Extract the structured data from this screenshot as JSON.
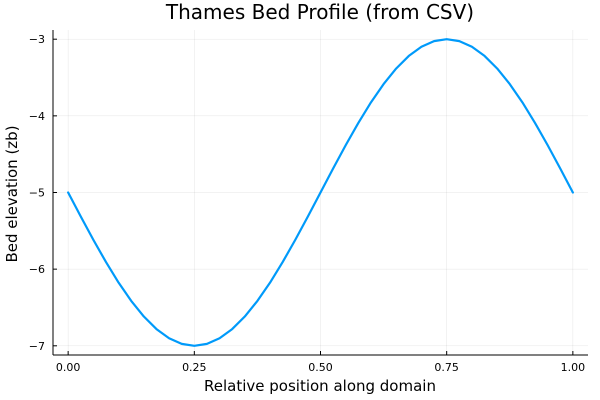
{
  "chart_data": {
    "type": "line",
    "title": "Thames Bed Profile (from CSV)",
    "xlabel": "Relative position along domain",
    "ylabel": "Bed elevation (zb)",
    "xlim": [
      -0.03,
      1.03
    ],
    "ylim": [
      -7.12,
      -2.88
    ],
    "x_ticks": [
      0,
      0.25,
      0.5,
      0.75,
      1
    ],
    "x_tick_labels": [
      "0.00",
      "0.25",
      "0.50",
      "0.75",
      "1.00"
    ],
    "y_ticks": [
      -3,
      -4,
      -5,
      -6,
      -7
    ],
    "y_tick_labels": [
      "−3",
      "−4",
      "−5",
      "−6",
      "−7"
    ],
    "grid": true,
    "legend": "none",
    "series": [
      {
        "color": "#009AFA",
        "x": [
          0.0,
          0.025,
          0.05,
          0.075,
          0.1,
          0.125,
          0.15,
          0.175,
          0.2,
          0.225,
          0.25,
          0.275,
          0.3,
          0.325,
          0.35,
          0.375,
          0.4,
          0.425,
          0.45,
          0.475,
          0.5,
          0.525,
          0.55,
          0.575,
          0.6,
          0.625,
          0.65,
          0.675,
          0.7,
          0.725,
          0.75,
          0.775,
          0.8,
          0.825,
          0.85,
          0.875,
          0.9,
          0.925,
          0.95,
          0.975,
          1.0
        ],
        "y": [
          -5.0,
          -5.313,
          -5.618,
          -5.908,
          -6.176,
          -6.414,
          -6.618,
          -6.782,
          -6.902,
          -6.975,
          -7.0,
          -6.975,
          -6.902,
          -6.782,
          -6.618,
          -6.414,
          -6.176,
          -5.908,
          -5.618,
          -5.313,
          -5.0,
          -4.687,
          -4.382,
          -4.092,
          -3.824,
          -3.586,
          -3.382,
          -3.218,
          -3.098,
          -3.025,
          -3.0,
          -3.025,
          -3.098,
          -3.218,
          -3.382,
          -3.586,
          -3.824,
          -4.092,
          -4.382,
          -4.687,
          -5.0
        ]
      }
    ]
  }
}
